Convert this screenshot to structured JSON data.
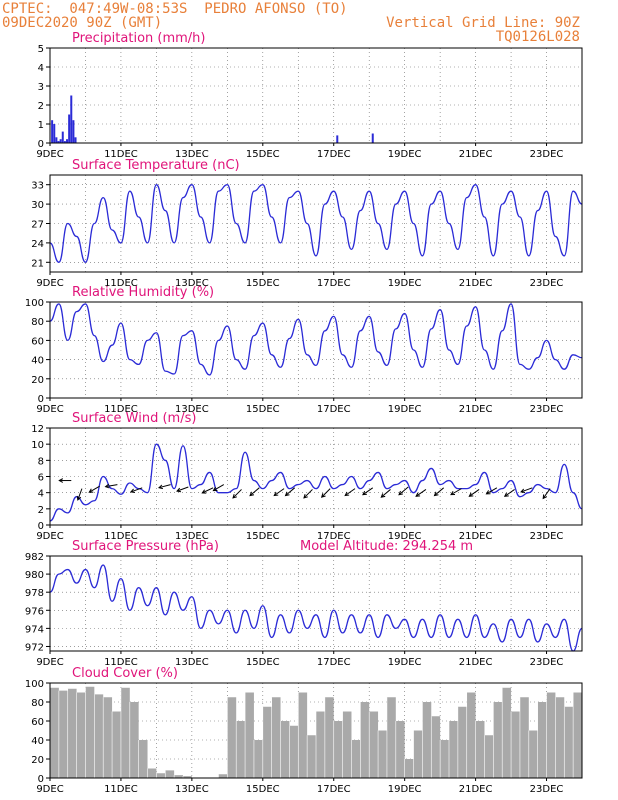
{
  "header": {
    "line1": "CPTEC:  047:49W-08:53S  PEDRO AFONSO (TO)",
    "line2": "09DEC2020 90Z (GMT)",
    "grid_note": "Vertical Grid Line: 90Z",
    "code": "TQ0126L028"
  },
  "colors": {
    "header": "#e8803a",
    "title": "#e0147a",
    "series": "#2b2bd6",
    "cloud": "#a9a9a9"
  },
  "chart_data": [
    {
      "id": "precipitation",
      "type": "bar",
      "title": "Precipitation (mm/h)",
      "ylim": [
        0,
        5
      ],
      "yticks": [
        "5",
        "4",
        "3",
        "2",
        "1",
        "0"
      ],
      "xlabels": [
        "9DEC",
        "11DEC",
        "13DEC",
        "15DEC",
        "17DEC",
        "19DEC",
        "21DEC",
        "23DEC"
      ],
      "x": [
        0.06,
        0.12,
        0.18,
        0.24,
        0.3,
        0.36,
        0.42,
        0.48,
        0.54,
        0.6,
        0.66,
        0.72,
        8.1,
        9.1
      ],
      "values": [
        1.2,
        1.0,
        0.3,
        0.1,
        0.2,
        0.6,
        0.1,
        0.2,
        1.5,
        2.5,
        1.2,
        0.3,
        0.4,
        0.5
      ],
      "grid": true
    },
    {
      "id": "temperature",
      "type": "line",
      "title": "Surface Temperature (nC)",
      "ylim": [
        19.5,
        34.5
      ],
      "yticks": [
        "33",
        "30",
        "27",
        "24",
        "21"
      ],
      "xlabels": [
        "9DEC",
        "11DEC",
        "13DEC",
        "15DEC",
        "17DEC",
        "19DEC",
        "21DEC",
        "23DEC"
      ],
      "x": [
        0.0,
        0.25,
        0.5,
        0.75,
        1.0,
        1.25,
        1.5,
        1.75,
        2.0,
        2.25,
        2.5,
        2.75,
        3.0,
        3.25,
        3.5,
        3.75,
        4.0,
        4.25,
        4.5,
        4.75,
        5.0,
        5.25,
        5.5,
        5.75,
        6.0,
        6.25,
        6.5,
        6.75,
        7.0,
        7.25,
        7.5,
        7.75,
        8.0,
        8.25,
        8.5,
        8.75,
        9.0,
        9.25,
        9.5,
        9.75,
        10.0,
        10.25,
        10.5,
        10.75,
        11.0,
        11.25,
        11.5,
        11.75,
        12.0,
        12.25,
        12.5,
        12.75,
        13.0,
        13.25,
        13.5,
        13.75,
        14.0,
        14.25,
        14.5,
        14.75,
        15.0
      ],
      "values": [
        24,
        21,
        27,
        25,
        21,
        27,
        31,
        26,
        24,
        32,
        28,
        24,
        33,
        29,
        24,
        31,
        33,
        28,
        24,
        32,
        33,
        27,
        24,
        32,
        33,
        28,
        24,
        31,
        32,
        27,
        22,
        30,
        32,
        28,
        23,
        29,
        32,
        27,
        23,
        30,
        32,
        27,
        22,
        30,
        32,
        27,
        23,
        31,
        33,
        28,
        22,
        30,
        32,
        28,
        22,
        29,
        32,
        25,
        22,
        32,
        30
      ],
      "grid": true
    },
    {
      "id": "humidity",
      "type": "line",
      "title": "Relative Humidity (%)",
      "ylim": [
        0,
        100
      ],
      "yticks": [
        "100",
        "80",
        "60",
        "40",
        "20",
        "0"
      ],
      "xlabels": [
        "9DEC",
        "11DEC",
        "13DEC",
        "15DEC",
        "17DEC",
        "19DEC",
        "21DEC",
        "23DEC"
      ],
      "x": [
        0.0,
        0.25,
        0.5,
        0.75,
        1.0,
        1.25,
        1.5,
        1.75,
        2.0,
        2.25,
        2.5,
        2.75,
        3.0,
        3.25,
        3.5,
        3.75,
        4.0,
        4.25,
        4.5,
        4.75,
        5.0,
        5.25,
        5.5,
        5.75,
        6.0,
        6.25,
        6.5,
        6.75,
        7.0,
        7.25,
        7.5,
        7.75,
        8.0,
        8.25,
        8.5,
        8.75,
        9.0,
        9.25,
        9.5,
        9.75,
        10.0,
        10.25,
        10.5,
        10.75,
        11.0,
        11.25,
        11.5,
        11.75,
        12.0,
        12.25,
        12.5,
        12.75,
        13.0,
        13.25,
        13.5,
        13.75,
        14.0,
        14.25,
        14.5,
        14.75,
        15.0
      ],
      "values": [
        80,
        98,
        60,
        90,
        98,
        65,
        38,
        55,
        78,
        40,
        35,
        60,
        68,
        28,
        25,
        65,
        70,
        35,
        24,
        60,
        75,
        40,
        30,
        65,
        78,
        45,
        32,
        62,
        82,
        45,
        34,
        70,
        85,
        45,
        32,
        70,
        85,
        48,
        34,
        72,
        88,
        50,
        32,
        72,
        92,
        50,
        35,
        75,
        95,
        50,
        30,
        70,
        98,
        35,
        30,
        42,
        60,
        40,
        30,
        45,
        42
      ],
      "grid": true
    },
    {
      "id": "wind",
      "type": "line",
      "title": "Surface Wind (m/s)",
      "ylim": [
        0,
        12
      ],
      "yticks": [
        "12",
        "10",
        "8",
        "6",
        "4",
        "2",
        "0"
      ],
      "xlabels": [
        "9DEC",
        "11DEC",
        "13DEC",
        "15DEC",
        "17DEC",
        "19DEC",
        "21DEC",
        "23DEC"
      ],
      "x": [
        0.0,
        0.25,
        0.5,
        0.75,
        1.0,
        1.25,
        1.5,
        1.75,
        2.0,
        2.25,
        2.5,
        2.75,
        3.0,
        3.25,
        3.5,
        3.75,
        4.0,
        4.25,
        4.5,
        4.75,
        5.0,
        5.25,
        5.5,
        5.75,
        6.0,
        6.25,
        6.5,
        6.75,
        7.0,
        7.25,
        7.5,
        7.75,
        8.0,
        8.25,
        8.5,
        8.75,
        9.0,
        9.25,
        9.5,
        9.75,
        10.0,
        10.25,
        10.5,
        10.75,
        11.0,
        11.25,
        11.5,
        11.75,
        12.0,
        12.25,
        12.5,
        12.75,
        13.0,
        13.25,
        13.5,
        13.75,
        14.0,
        14.25,
        14.5,
        14.75,
        15.0
      ],
      "values": [
        0.5,
        2.0,
        1.5,
        3.5,
        2.5,
        3.0,
        6.0,
        4.5,
        3.8,
        5.2,
        4.5,
        4.0,
        10.0,
        8.0,
        4.5,
        9.8,
        4.5,
        5.0,
        6.5,
        4.0,
        4.0,
        4.5,
        9.0,
        5.5,
        4.5,
        5.5,
        6.5,
        4.5,
        5.0,
        5.5,
        4.5,
        6.0,
        4.5,
        5.0,
        6.0,
        4.5,
        5.5,
        6.5,
        4.5,
        5.0,
        5.5,
        4.0,
        5.5,
        7.0,
        5.0,
        5.5,
        4.5,
        4.5,
        5.0,
        6.5,
        4.0,
        4.5,
        5.5,
        3.5,
        4.0,
        5.0,
        4.5,
        4.0,
        7.5,
        4.0,
        2.0
      ],
      "arrows_x": [
        0.6,
        0.9,
        1.4,
        1.9,
        2.6,
        3.4,
        3.9,
        4.6,
        4.9,
        5.4,
        5.9,
        6.6,
        6.9,
        7.4,
        7.9,
        8.6,
        9.1,
        9.6,
        10.1,
        10.6,
        11.1,
        11.6,
        12.1,
        12.6,
        13.1,
        13.6,
        14.1
      ],
      "arrows_y": [
        5.5,
        4.5,
        4.8,
        5.0,
        4.6,
        5.0,
        4.7,
        4.6,
        5.0,
        4.4,
        4.6,
        4.5,
        4.6,
        4.4,
        4.5,
        4.5,
        4.6,
        4.4,
        4.7,
        4.4,
        4.6,
        4.5,
        4.4,
        4.6,
        4.4,
        4.6,
        4.5
      ],
      "arrows_angle_deg": [
        180,
        250,
        210,
        190,
        200,
        195,
        200,
        205,
        210,
        225,
        220,
        215,
        220,
        225,
        225,
        215,
        215,
        220,
        220,
        215,
        220,
        210,
        215,
        210,
        215,
        200,
        235
      ],
      "grid": true
    },
    {
      "id": "pressure",
      "type": "line",
      "title": "Surface Pressure (hPa)",
      "annotation": "Model Altitude: 294.254 m",
      "ylim": [
        971.5,
        982
      ],
      "yticks": [
        "982",
        "980",
        "978",
        "976",
        "974",
        "972"
      ],
      "xlabels": [
        "9DEC",
        "11DEC",
        "13DEC",
        "15DEC",
        "17DEC",
        "19DEC",
        "21DEC",
        "23DEC"
      ],
      "x": [
        0.0,
        0.25,
        0.5,
        0.75,
        1.0,
        1.25,
        1.5,
        1.75,
        2.0,
        2.25,
        2.5,
        2.75,
        3.0,
        3.25,
        3.5,
        3.75,
        4.0,
        4.25,
        4.5,
        4.75,
        5.0,
        5.25,
        5.5,
        5.75,
        6.0,
        6.25,
        6.5,
        6.75,
        7.0,
        7.25,
        7.5,
        7.75,
        8.0,
        8.25,
        8.5,
        8.75,
        9.0,
        9.25,
        9.5,
        9.75,
        10.0,
        10.25,
        10.5,
        10.75,
        11.0,
        11.25,
        11.5,
        11.75,
        12.0,
        12.25,
        12.5,
        12.75,
        13.0,
        13.25,
        13.5,
        13.75,
        14.0,
        14.25,
        14.5,
        14.75,
        15.0
      ],
      "values": [
        978,
        980,
        980.5,
        979,
        980.5,
        978.5,
        981,
        977,
        979.5,
        976,
        978.5,
        976.5,
        978.5,
        975.5,
        978,
        976,
        977.5,
        974,
        976,
        974.5,
        976,
        973.5,
        976,
        974,
        976.5,
        973,
        975.5,
        973.5,
        976,
        974,
        975.5,
        973,
        976,
        973.5,
        975.5,
        973.5,
        975.5,
        973,
        975.5,
        974,
        975,
        973,
        975,
        973,
        975.5,
        973,
        975,
        973,
        975.5,
        973,
        974.5,
        972.5,
        975,
        973,
        975,
        972.5,
        974.5,
        973,
        975,
        971.5,
        974
      ],
      "grid": true
    },
    {
      "id": "cloud",
      "type": "area",
      "title": "Cloud Cover (%)",
      "ylim": [
        0,
        100
      ],
      "yticks": [
        "100",
        "80",
        "60",
        "40",
        "20",
        "0"
      ],
      "xlabels": [
        "9DEC",
        "11DEC",
        "13DEC",
        "15DEC",
        "17DEC",
        "19DEC",
        "21DEC",
        "23DEC"
      ],
      "x": [
        0.0,
        0.25,
        0.5,
        0.75,
        1.0,
        1.25,
        1.5,
        1.75,
        2.0,
        2.25,
        2.5,
        2.75,
        3.0,
        3.25,
        3.5,
        3.75,
        4.0,
        4.25,
        4.5,
        4.75,
        5.0,
        5.25,
        5.5,
        5.75,
        6.0,
        6.25,
        6.5,
        6.75,
        7.0,
        7.25,
        7.5,
        7.75,
        8.0,
        8.25,
        8.5,
        8.75,
        9.0,
        9.25,
        9.5,
        9.75,
        10.0,
        10.25,
        10.5,
        10.75,
        11.0,
        11.25,
        11.5,
        11.75,
        12.0,
        12.25,
        12.5,
        12.75,
        13.0,
        13.25,
        13.5,
        13.75,
        14.0,
        14.25,
        14.5,
        14.75,
        15.0
      ],
      "values": [
        95,
        92,
        94,
        90,
        96,
        88,
        85,
        70,
        95,
        80,
        40,
        10,
        5,
        8,
        3,
        2,
        0,
        0,
        0,
        4,
        85,
        60,
        90,
        40,
        75,
        85,
        60,
        55,
        90,
        45,
        70,
        85,
        60,
        70,
        40,
        80,
        70,
        50,
        85,
        60,
        20,
        50,
        80,
        65,
        40,
        60,
        75,
        90,
        60,
        45,
        80,
        95,
        70,
        85,
        50,
        80,
        90,
        85,
        75,
        90,
        92
      ],
      "grid": true
    }
  ]
}
